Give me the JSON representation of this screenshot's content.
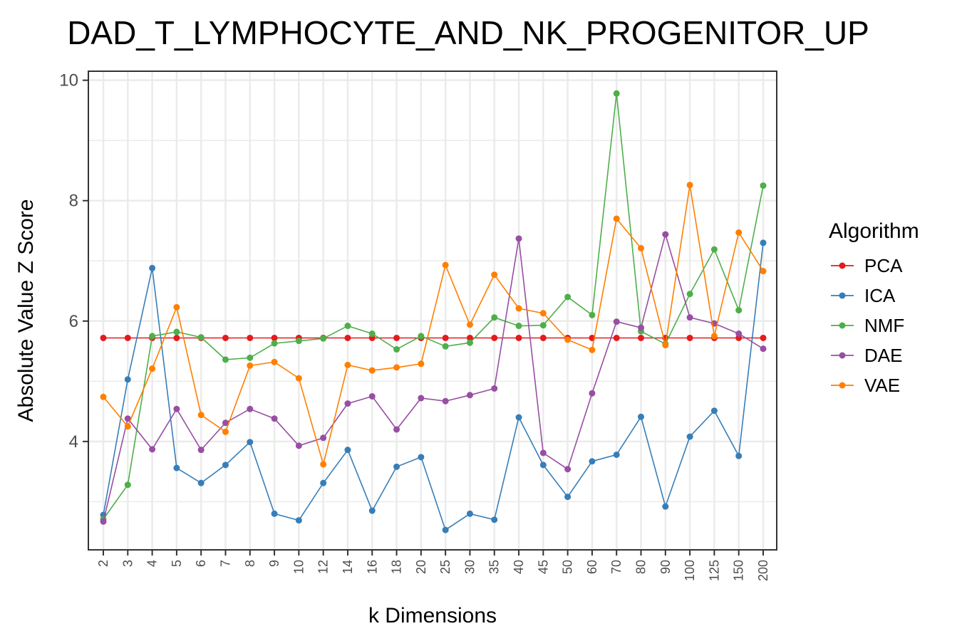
{
  "chart_data": {
    "type": "line",
    "title": "DAD_T_LYMPHOCYTE_AND_NK_PROGENITOR_UP",
    "xlabel": "k Dimensions",
    "ylabel": "Absolute Value Z Score",
    "categories": [
      "2",
      "3",
      "4",
      "5",
      "6",
      "7",
      "8",
      "9",
      "10",
      "12",
      "14",
      "16",
      "18",
      "20",
      "25",
      "30",
      "35",
      "40",
      "45",
      "50",
      "60",
      "70",
      "80",
      "90",
      "100",
      "125",
      "150",
      "200"
    ],
    "yticks": [
      4,
      6,
      8,
      10
    ],
    "ylim": [
      2.2,
      10.15
    ],
    "grid": true,
    "legend": {
      "title": "Algorithm",
      "position": "right"
    },
    "series": [
      {
        "name": "PCA",
        "color": "#E41A1C",
        "values": [
          5.72,
          5.72,
          5.72,
          5.72,
          5.72,
          5.72,
          5.72,
          5.72,
          5.72,
          5.72,
          5.72,
          5.72,
          5.72,
          5.72,
          5.72,
          5.72,
          5.72,
          5.72,
          5.72,
          5.72,
          5.72,
          5.72,
          5.72,
          5.72,
          5.72,
          5.72,
          5.72,
          5.72
        ]
      },
      {
        "name": "ICA",
        "color": "#377EB8",
        "values": [
          2.78,
          5.03,
          6.88,
          3.56,
          3.31,
          3.61,
          3.99,
          2.8,
          2.69,
          3.31,
          3.86,
          2.85,
          3.58,
          3.74,
          2.53,
          2.8,
          2.7,
          4.4,
          3.61,
          3.08,
          3.67,
          3.78,
          4.41,
          2.92,
          4.08,
          4.51,
          3.76,
          7.3
        ]
      },
      {
        "name": "NMF",
        "color": "#4DAF4A",
        "values": [
          2.71,
          3.28,
          5.75,
          5.82,
          5.73,
          5.36,
          5.39,
          5.63,
          5.67,
          5.71,
          5.92,
          5.79,
          5.53,
          5.75,
          5.58,
          5.64,
          6.06,
          5.92,
          5.93,
          6.4,
          6.1,
          9.78,
          5.83,
          5.62,
          6.45,
          7.19,
          6.18,
          8.25
        ]
      },
      {
        "name": "DAE",
        "color": "#984EA3",
        "values": [
          2.67,
          4.38,
          3.87,
          4.54,
          3.86,
          4.31,
          4.54,
          4.38,
          3.93,
          4.06,
          4.63,
          4.75,
          4.2,
          4.72,
          4.67,
          4.77,
          4.88,
          7.37,
          3.81,
          3.54,
          4.8,
          5.99,
          5.89,
          7.44,
          6.06,
          5.96,
          5.79,
          5.54
        ]
      },
      {
        "name": "VAE",
        "color": "#FF7F00",
        "values": [
          4.74,
          4.25,
          5.21,
          6.23,
          4.44,
          4.16,
          5.26,
          5.32,
          5.05,
          3.62,
          5.27,
          5.18,
          5.23,
          5.29,
          6.93,
          5.94,
          6.77,
          6.21,
          6.13,
          5.69,
          5.52,
          7.7,
          7.21,
          5.6,
          8.26,
          5.75,
          7.47,
          6.83
        ]
      }
    ]
  }
}
